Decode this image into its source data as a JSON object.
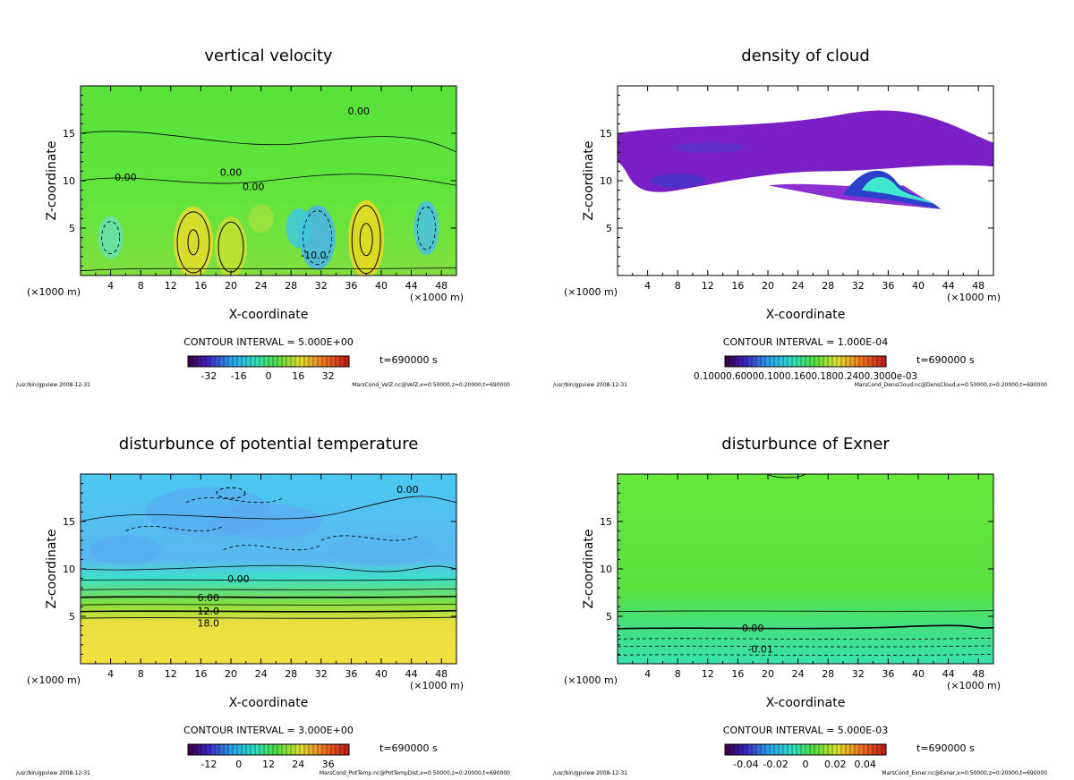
{
  "chart_data": [
    {
      "type": "heatmap",
      "title": "vertical velocity",
      "xlabel": "X-coordinate",
      "ylabel": "Z-coordinate",
      "x_unit": "(×1000 m)",
      "xlim": [
        0,
        50
      ],
      "ylim": [
        0,
        20
      ],
      "x_ticks": [
        "4",
        "8",
        "12",
        "16",
        "20",
        "24",
        "28",
        "32",
        "36",
        "40",
        "44",
        "48"
      ],
      "y_ticks": [
        "5",
        "10",
        "15"
      ],
      "contour_interval": "CONTOUR INTERVAL = 5.000E+00",
      "contour_labels": [
        "0.00",
        "0.00",
        "0.00",
        "0.00",
        "-10.0"
      ],
      "colorbar_ticks": [
        "-32",
        "-16",
        "0",
        "16",
        "32"
      ],
      "time": "t=690000 s",
      "footer_left": "/usr/bin/gpview  2008-12-31",
      "footer_right": "MarsCond_VelZ.nc@VelZ,x=0:50000,z=0:20000,t=690000",
      "colors": {
        "base": "#52e23a",
        "high": "#e8dc2a",
        "low": "#4ab0e8"
      }
    },
    {
      "type": "heatmap",
      "title": "density of cloud",
      "xlabel": "X-coordinate",
      "ylabel": "Z-coordinate",
      "x_unit": "(×1000 m)",
      "xlim": [
        0,
        50
      ],
      "ylim": [
        0,
        20
      ],
      "x_ticks": [
        "4",
        "8",
        "12",
        "16",
        "20",
        "24",
        "28",
        "32",
        "36",
        "40",
        "44",
        "48"
      ],
      "y_ticks": [
        "5",
        "10",
        "15"
      ],
      "contour_interval": "CONTOUR INTERVAL = 1.000E-04",
      "contour_labels": [],
      "colorbar_ticks_text": "0.10000.60000.1000.1600.1800.2400.3000e-03",
      "time": "t=690000 s",
      "footer_left": "/usr/bin/gpview  2008-12-31",
      "footer_right": "MarsCond_DensCloud.nc@DensCloud,x=0:50000,z=0:20000,t=690000",
      "colors": {
        "base": "#ffffff",
        "cloud": "#7a1fc4",
        "dense": "#2a40c8",
        "peak": "#40e8d0"
      }
    },
    {
      "type": "heatmap",
      "title": "disturbunce of potential temperature",
      "xlabel": "X-coordinate",
      "ylabel": "Z-coordinate",
      "x_unit": "(×1000 m)",
      "xlim": [
        0,
        50
      ],
      "ylim": [
        0,
        20
      ],
      "x_ticks": [
        "4",
        "8",
        "12",
        "16",
        "20",
        "24",
        "28",
        "32",
        "36",
        "40",
        "44",
        "48"
      ],
      "y_ticks": [
        "5",
        "10",
        "15"
      ],
      "contour_interval": "CONTOUR INTERVAL = 3.000E+00",
      "contour_labels": [
        "0.00",
        "0.00",
        "6.00",
        "12.0",
        "18.0"
      ],
      "colorbar_ticks": [
        "-12",
        "0",
        "12",
        "24",
        "36"
      ],
      "time": "t=690000 s",
      "footer_left": "/usr/bin/gpview  2008-12-31",
      "footer_right": "MarsCond_PotTemp.nc@PotTempDist,x=0:50000,z=0:20000,t=690000",
      "colors": {
        "upper": "#3cc4f0",
        "mid": "#40e0b0",
        "lower": "#f0e040"
      }
    },
    {
      "type": "heatmap",
      "title": "disturbunce of Exner",
      "xlabel": "X-coordinate",
      "ylabel": "Z-coordinate",
      "x_unit": "(×1000 m)",
      "xlim": [
        0,
        50
      ],
      "ylim": [
        0,
        20
      ],
      "x_ticks": [
        "4",
        "8",
        "12",
        "16",
        "20",
        "24",
        "28",
        "32",
        "36",
        "40",
        "44",
        "48"
      ],
      "y_ticks": [
        "5",
        "10",
        "15"
      ],
      "contour_interval": "CONTOUR INTERVAL = 5.000E-03",
      "contour_labels": [
        "0.00",
        "-0.01"
      ],
      "colorbar_ticks": [
        "-0.04",
        "-0.02",
        "0",
        "0.02",
        "0.04"
      ],
      "time": "t=690000 s",
      "footer_left": "/usr/bin/gpview  2008-12-31",
      "footer_right": "MarsCond_Exner.nc@Exner,x=0:50000,z=0:20000,t=690000",
      "colors": {
        "base": "#5ce63a",
        "low": "#38e4a0"
      }
    }
  ]
}
